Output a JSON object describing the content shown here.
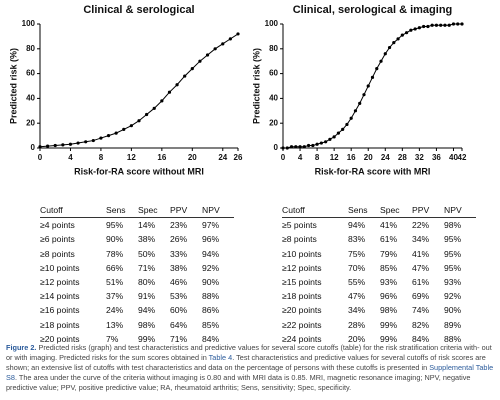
{
  "chart_data": [
    {
      "type": "line",
      "title": "Clinical & serological",
      "x_label": "Risk-for-RA score without MRI",
      "y_label": "Predicted risk (%)",
      "color": "#000000",
      "x": [
        0,
        1,
        2,
        3,
        4,
        5,
        6,
        7,
        8,
        9,
        10,
        11,
        12,
        13,
        14,
        15,
        16,
        17,
        18,
        19,
        20,
        21,
        22,
        23,
        24,
        25,
        26
      ],
      "values": [
        1,
        1.5,
        2,
        2.5,
        3,
        4,
        5,
        6,
        8,
        10,
        12,
        15,
        18,
        22,
        27,
        32,
        38,
        45,
        51,
        58,
        64,
        70,
        75,
        80,
        84,
        88,
        92
      ],
      "xlim": [
        0,
        26
      ],
      "xticks": [
        0,
        4,
        8,
        12,
        16,
        20,
        24,
        26
      ],
      "ylim": [
        0,
        100
      ],
      "yticks": [
        0,
        20,
        40,
        60,
        80,
        100
      ]
    },
    {
      "type": "line",
      "title": "Clinical, serological & imaging",
      "x_label": "Risk-for-RA score with MRI",
      "y_label": "Predicted risk (%)",
      "color": "#000000",
      "x": [
        0,
        1,
        2,
        3,
        4,
        5,
        6,
        7,
        8,
        9,
        10,
        11,
        12,
        13,
        14,
        15,
        16,
        17,
        18,
        19,
        20,
        21,
        22,
        23,
        24,
        25,
        26,
        27,
        28,
        29,
        30,
        31,
        32,
        33,
        34,
        35,
        36,
        37,
        38,
        39,
        40,
        41,
        42
      ],
      "values": [
        0,
        0,
        1,
        1,
        1,
        1,
        2,
        2,
        3,
        4,
        5,
        7,
        9,
        12,
        15,
        19,
        24,
        30,
        36,
        43,
        50,
        57,
        64,
        70,
        76,
        81,
        85,
        88,
        91,
        93,
        95,
        96,
        97,
        98,
        98,
        99,
        99,
        99,
        99,
        99,
        100,
        100,
        100
      ],
      "xlim": [
        0,
        42
      ],
      "xticks": [
        0,
        4,
        8,
        12,
        16,
        20,
        24,
        28,
        32,
        36,
        40,
        42
      ],
      "ylim": [
        0,
        100
      ],
      "yticks": [
        0,
        20,
        40,
        60,
        80,
        100
      ]
    }
  ],
  "tables": [
    {
      "header": [
        "Cutoff",
        "Sens",
        "Spec",
        "PPV",
        "NPV"
      ],
      "rows": [
        [
          "≥4 points",
          "95%",
          "14%",
          "23%",
          "97%"
        ],
        [
          "≥6 points",
          "90%",
          "38%",
          "26%",
          "96%"
        ],
        [
          "≥8 points",
          "78%",
          "50%",
          "33%",
          "94%"
        ],
        [
          "≥10 points",
          "66%",
          "71%",
          "38%",
          "92%"
        ],
        [
          "≥12 points",
          "51%",
          "80%",
          "46%",
          "90%"
        ],
        [
          "≥14 points",
          "37%",
          "91%",
          "53%",
          "88%"
        ],
        [
          "≥16 points",
          "24%",
          "94%",
          "60%",
          "86%"
        ],
        [
          "≥18 points",
          "13%",
          "98%",
          "64%",
          "85%"
        ],
        [
          "≥20 points",
          "7%",
          "99%",
          "71%",
          "84%"
        ]
      ]
    },
    {
      "header": [
        "Cutoff",
        "Sens",
        "Spec",
        "PPV",
        "NPV"
      ],
      "rows": [
        [
          "≥5 points",
          "94%",
          "41%",
          "22%",
          "98%"
        ],
        [
          "≥8 points",
          "83%",
          "61%",
          "34%",
          "95%"
        ],
        [
          "≥10 points",
          "75%",
          "79%",
          "41%",
          "95%"
        ],
        [
          "≥12 points",
          "70%",
          "85%",
          "47%",
          "95%"
        ],
        [
          "≥15 points",
          "55%",
          "93%",
          "61%",
          "93%"
        ],
        [
          "≥18 points",
          "47%",
          "96%",
          "69%",
          "92%"
        ],
        [
          "≥20 points",
          "34%",
          "98%",
          "74%",
          "90%"
        ],
        [
          "≥22 points",
          "28%",
          "99%",
          "82%",
          "89%"
        ],
        [
          "≥24 points",
          "20%",
          "99%",
          "84%",
          "88%"
        ]
      ]
    }
  ],
  "caption": {
    "label": "Figure 2.",
    "text_1": " Predicted risks (graph) and test characteristics and predictive values for several score cutoffs (table) for the risk stratification criteria with- out or with imaging. Predicted risks for the sum scores obtained in ",
    "link_1": "Table 4",
    "text_2": ". Test characteristics and predictive values for several cutoffs of risk scores are shown; an extensive list of cutoffs with test characteristics and data on the percentage of persons with these cutoffs is presented in ",
    "link_2": "Supplemental Table S8",
    "text_3": ". The area under the curve of the criteria without imaging is 0.80 and with MRI data is 0.85. MRI, magnetic resonance imaging; NPV, negative predictive value; PPV, positive predictive value; RA, rheumatoid arthritis; Sens, sensitivity; Spec, specificity."
  }
}
